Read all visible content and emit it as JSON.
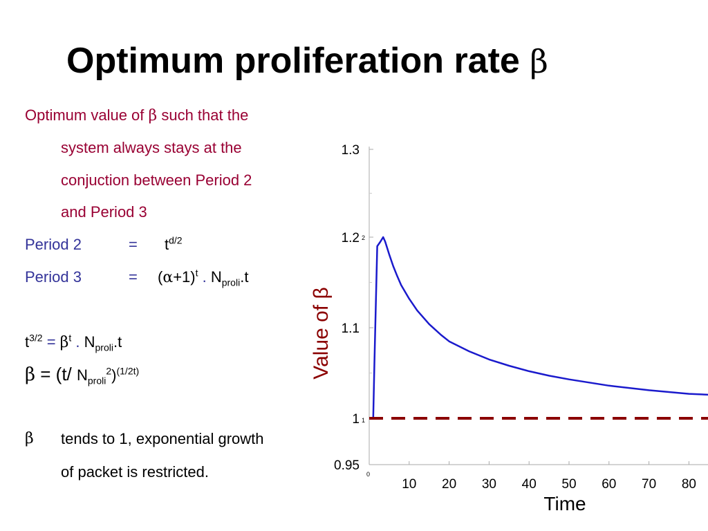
{
  "slide": {
    "title_text": "Optimum proliferation rate ",
    "title_symbol": "β"
  },
  "text": {
    "intro_line1_a": "Optimum value of ",
    "intro_line1_sym": "β",
    "intro_line1_b": " such that the",
    "intro_line2": "system always stays at the",
    "intro_line3": "conjuction between Period 2",
    "intro_line4": "and Period 3",
    "period2_label": "Period 2",
    "period2_eq": "=",
    "period2_base": "t",
    "period2_exp": "d/2",
    "period3_label": "Period 3",
    "period3_eq": "=",
    "period3_open": "(",
    "period3_alpha": "α",
    "period3_plus": "+1)",
    "period3_exp": "t",
    "period3_dot": " . ",
    "period3_n": "N",
    "period3_sub": "proli",
    "period3_end": ".t",
    "eq1_base": "t",
    "eq1_exp": "3/2",
    "eq1_eq": " = ",
    "eq1_beta": "β",
    "eq1_beta_exp": "t",
    "eq1_dot": " . ",
    "eq1_n": "N",
    "eq1_sub": "proli",
    "eq1_end": ".t",
    "eq2_beta": "β",
    "eq2_mid": " = (t/ ",
    "eq2_n": "N",
    "eq2_sub": "proli",
    "eq2_sq": "2",
    "eq2_close": ")",
    "eq2_exp": "(1/2t)",
    "conclusion_sym": "β",
    "conclusion_line1": "tends to 1, exponential growth",
    "conclusion_line2": "of packet is restricted."
  },
  "chart_data": {
    "type": "line",
    "xlabel": "Time",
    "ylabel": "Value of β",
    "x_ticks": [
      10,
      20,
      30,
      40,
      50,
      60,
      70,
      80
    ],
    "y_ticks": [
      0.95,
      1,
      1.1,
      1.2,
      1.3
    ],
    "y_tick_labels": [
      "0.95",
      "1",
      "1.1",
      "1.2",
      "1.3"
    ],
    "xlim": [
      0,
      85
    ],
    "ylim": [
      0.95,
      1.3
    ],
    "series": [
      {
        "color": "#1a1acc",
        "style": "solid",
        "x": [
          0.5,
          1,
          1.3,
          2,
          2.8,
          3.5,
          4,
          5,
          6,
          7,
          8,
          10,
          12,
          15,
          18,
          20,
          25,
          30,
          35,
          40,
          45,
          50,
          60,
          70,
          80,
          85
        ],
        "y": [
          1.0,
          1.0,
          1.06,
          1.19,
          1.195,
          1.2,
          1.195,
          1.181,
          1.168,
          1.157,
          1.147,
          1.132,
          1.119,
          1.104,
          1.092,
          1.085,
          1.074,
          1.065,
          1.058,
          1.052,
          1.047,
          1.043,
          1.036,
          1.031,
          1.027,
          1.026
        ]
      },
      {
        "color": "#8b0000",
        "style": "dashed",
        "x": [
          0,
          85
        ],
        "y": [
          1.0,
          1.0
        ]
      }
    ],
    "small_marks": [
      "1",
      "2",
      "0",
      "1"
    ],
    "grid": false
  }
}
